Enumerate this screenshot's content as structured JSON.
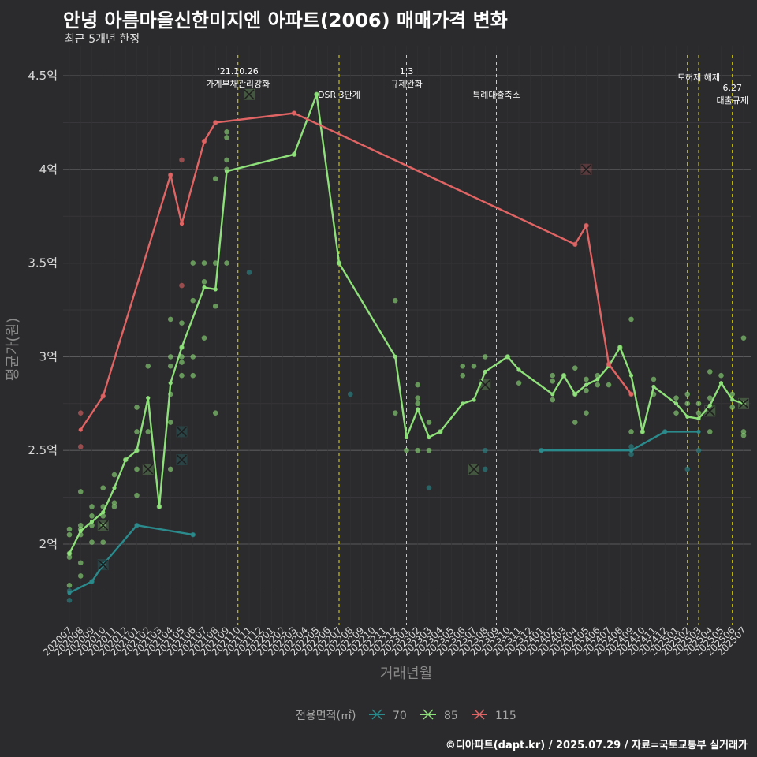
{
  "title": "안녕 아름마을신한미지엔 아파트(2006) 매매가격 변화",
  "subtitle": "최근 5개년 한정",
  "caption": "©디아파트(dapt.kr) / 2025.07.29 / 자료=국토교통부 실거래가",
  "chart_data": {
    "type": "line",
    "xlabel": "거래년월",
    "ylabel": "평균가(원)",
    "ylim": [
      1.6,
      4.6
    ],
    "yticks": [
      2.0,
      2.5,
      3.0,
      3.5,
      4.0,
      4.5
    ],
    "ytick_labels": [
      "2억",
      "2.5억",
      "3억",
      "3.5억",
      "4억",
      "4.5억"
    ],
    "x_categories": [
      "202007",
      "202008",
      "202009",
      "202010",
      "202011",
      "202012",
      "202101",
      "202102",
      "202103",
      "202104",
      "202105",
      "202106",
      "202107",
      "202108",
      "202109",
      "202110",
      "202111",
      "202112",
      "202201",
      "202202",
      "202203",
      "202204",
      "202205",
      "202206",
      "202207",
      "202208",
      "202209",
      "202210",
      "202211",
      "202212",
      "202301",
      "202302",
      "202303",
      "202304",
      "202305",
      "202306",
      "202307",
      "202308",
      "202309",
      "202310",
      "202311",
      "202312",
      "202401",
      "202402",
      "202403",
      "202404",
      "202405",
      "202406",
      "202407",
      "202408",
      "202409",
      "202410",
      "202411",
      "202412",
      "202501",
      "202502",
      "202503",
      "202504",
      "202505",
      "202506",
      "202507"
    ],
    "x_ticks": [
      "202007",
      "202008",
      "202009",
      "202010",
      "202011",
      "202012",
      "202101",
      "202102",
      "202103",
      "202104",
      "202105",
      "202106",
      "202107",
      "202108",
      "202109",
      "202110",
      "202111",
      "202112",
      "202201",
      "202202",
      "202203",
      "202204",
      "202205",
      "202206",
      "202207",
      "202208",
      "202209",
      "202210",
      "202211",
      "202212",
      "202301",
      "202302",
      "202303",
      "202304",
      "202305",
      "202306",
      "202307",
      "202308",
      "202309",
      "202310",
      "202311",
      "202312",
      "202401",
      "202402",
      "202403",
      "202404",
      "202405",
      "202406",
      "202407",
      "202408",
      "202409",
      "202410",
      "202411",
      "202412",
      "202501",
      "202502",
      "202503",
      "202504",
      "202505",
      "202506",
      "202507"
    ],
    "legend_title": "전용면적(㎡)",
    "legend_position": "bottom",
    "grid": true,
    "series": [
      {
        "name": "70",
        "color": "#2a8a8c",
        "line": [
          [
            "202007",
            1.74
          ],
          [
            "202009",
            1.8
          ],
          [
            "202010",
            1.89
          ],
          [
            "202101",
            2.1
          ],
          [
            "202106",
            2.05
          ]
        ],
        "line2": [
          [
            "202401",
            2.5
          ],
          [
            "202409",
            2.5
          ],
          [
            "202412",
            2.6
          ],
          [
            "202503",
            2.6
          ]
        ],
        "points": [
          [
            "202007",
            1.7
          ],
          [
            "202007",
            1.75
          ],
          [
            "202009",
            1.8
          ],
          [
            "202010",
            1.89
          ],
          [
            "202101",
            2.1
          ],
          [
            "202106",
            2.05
          ],
          [
            "202111",
            3.45
          ],
          [
            "202208",
            2.8
          ],
          [
            "202303",
            2.3
          ],
          [
            "202308",
            2.4
          ],
          [
            "202308",
            2.5
          ],
          [
            "202401",
            2.5
          ],
          [
            "202409",
            2.48
          ],
          [
            "202409",
            2.52
          ],
          [
            "202412",
            2.6
          ],
          [
            "202502",
            2.4
          ],
          [
            "202503",
            2.5
          ]
        ],
        "cross": [
          [
            "202010",
            1.89
          ],
          [
            "202105",
            2.6
          ],
          [
            "202105",
            2.45
          ]
        ]
      },
      {
        "name": "85",
        "color": "#8ee07a",
        "line": [
          [
            "202007",
            1.95
          ],
          [
            "202008",
            2.07
          ],
          [
            "202009",
            2.12
          ],
          [
            "202010",
            2.17
          ],
          [
            "202011",
            2.3
          ],
          [
            "202012",
            2.45
          ],
          [
            "202101",
            2.5
          ],
          [
            "202102",
            2.78
          ],
          [
            "202103",
            2.2
          ],
          [
            "202104",
            2.86
          ],
          [
            "202105",
            3.05
          ],
          [
            "202107",
            3.37
          ],
          [
            "202108",
            3.36
          ],
          [
            "202109",
            3.99
          ],
          [
            "202203",
            4.08
          ],
          [
            "202205",
            4.4
          ],
          [
            "202207",
            3.5
          ],
          [
            "202212",
            3.0
          ],
          [
            "202301",
            2.57
          ],
          [
            "202302",
            2.72
          ],
          [
            "202303",
            2.57
          ],
          [
            "202304",
            2.6
          ],
          [
            "202306",
            2.75
          ],
          [
            "202307",
            2.77
          ],
          [
            "202308",
            2.92
          ],
          [
            "202310",
            3.0
          ],
          [
            "202311",
            2.93
          ],
          [
            "202402",
            2.8
          ],
          [
            "202403",
            2.9
          ],
          [
            "202404",
            2.8
          ],
          [
            "202405",
            2.85
          ],
          [
            "202406",
            2.88
          ],
          [
            "202407",
            2.95
          ],
          [
            "202408",
            3.05
          ],
          [
            "202409",
            2.9
          ],
          [
            "202410",
            2.6
          ],
          [
            "202411",
            2.84
          ],
          [
            "202501",
            2.75
          ],
          [
            "202502",
            2.68
          ],
          [
            "202503",
            2.67
          ],
          [
            "202504",
            2.74
          ],
          [
            "202505",
            2.86
          ],
          [
            "202506",
            2.77
          ],
          [
            "202507",
            2.75
          ]
        ],
        "points": [
          [
            "202007",
            1.78
          ],
          [
            "202007",
            1.93
          ],
          [
            "202007",
            1.95
          ],
          [
            "202007",
            2.05
          ],
          [
            "202007",
            2.08
          ],
          [
            "202008",
            1.83
          ],
          [
            "202008",
            1.9
          ],
          [
            "202008",
            2.05
          ],
          [
            "202008",
            2.08
          ],
          [
            "202008",
            2.1
          ],
          [
            "202008",
            2.28
          ],
          [
            "202009",
            2.01
          ],
          [
            "202009",
            2.1
          ],
          [
            "202009",
            2.15
          ],
          [
            "202009",
            2.2
          ],
          [
            "202010",
            2.01
          ],
          [
            "202010",
            2.1
          ],
          [
            "202010",
            2.15
          ],
          [
            "202010",
            2.2
          ],
          [
            "202010",
            2.3
          ],
          [
            "202011",
            2.2
          ],
          [
            "202011",
            2.22
          ],
          [
            "202011",
            2.37
          ],
          [
            "202012",
            2.45
          ],
          [
            "202101",
            2.26
          ],
          [
            "202101",
            2.4
          ],
          [
            "202101",
            2.5
          ],
          [
            "202101",
            2.6
          ],
          [
            "202101",
            2.73
          ],
          [
            "202102",
            2.6
          ],
          [
            "202102",
            2.95
          ],
          [
            "202103",
            2.2
          ],
          [
            "202104",
            2.4
          ],
          [
            "202104",
            2.65
          ],
          [
            "202104",
            2.8
          ],
          [
            "202104",
            2.95
          ],
          [
            "202104",
            3.0
          ],
          [
            "202104",
            3.2
          ],
          [
            "202105",
            2.9
          ],
          [
            "202105",
            2.97
          ],
          [
            "202105",
            3.0
          ],
          [
            "202105",
            3.05
          ],
          [
            "202105",
            3.18
          ],
          [
            "202106",
            2.9
          ],
          [
            "202106",
            3.0
          ],
          [
            "202106",
            3.3
          ],
          [
            "202106",
            3.5
          ],
          [
            "202107",
            3.1
          ],
          [
            "202107",
            3.4
          ],
          [
            "202107",
            3.5
          ],
          [
            "202108",
            2.7
          ],
          [
            "202108",
            3.27
          ],
          [
            "202108",
            3.5
          ],
          [
            "202108",
            3.95
          ],
          [
            "202109",
            3.5
          ],
          [
            "202109",
            4.0
          ],
          [
            "202109",
            4.05
          ],
          [
            "202109",
            4.17
          ],
          [
            "202109",
            4.2
          ],
          [
            "202203",
            4.08
          ],
          [
            "202205",
            4.4
          ],
          [
            "202207",
            3.5
          ],
          [
            "202212",
            2.7
          ],
          [
            "202212",
            3.3
          ],
          [
            "202301",
            2.5
          ],
          [
            "202302",
            2.5
          ],
          [
            "202302",
            2.75
          ],
          [
            "202302",
            2.78
          ],
          [
            "202302",
            2.85
          ],
          [
            "202303",
            2.5
          ],
          [
            "202303",
            2.65
          ],
          [
            "202304",
            2.6
          ],
          [
            "202306",
            2.9
          ],
          [
            "202306",
            2.95
          ],
          [
            "202307",
            2.95
          ],
          [
            "202308",
            3.0
          ],
          [
            "202310",
            3.0
          ],
          [
            "202311",
            2.86
          ],
          [
            "202402",
            2.77
          ],
          [
            "202402",
            2.87
          ],
          [
            "202402",
            2.9
          ],
          [
            "202403",
            2.9
          ],
          [
            "202404",
            2.65
          ],
          [
            "202404",
            2.8
          ],
          [
            "202404",
            2.94
          ],
          [
            "202405",
            2.7
          ],
          [
            "202405",
            2.82
          ],
          [
            "202405",
            2.88
          ],
          [
            "202406",
            2.85
          ],
          [
            "202406",
            2.9
          ],
          [
            "202407",
            2.85
          ],
          [
            "202408",
            3.05
          ],
          [
            "202409",
            2.6
          ],
          [
            "202409",
            3.2
          ],
          [
            "202410",
            2.6
          ],
          [
            "202411",
            2.8
          ],
          [
            "202411",
            2.88
          ],
          [
            "202501",
            2.7
          ],
          [
            "202501",
            2.78
          ],
          [
            "202502",
            2.75
          ],
          [
            "202502",
            2.8
          ],
          [
            "202503",
            2.7
          ],
          [
            "202503",
            2.75
          ],
          [
            "202504",
            2.6
          ],
          [
            "202504",
            2.78
          ],
          [
            "202504",
            2.92
          ],
          [
            "202505",
            2.9
          ],
          [
            "202506",
            2.73
          ],
          [
            "202506",
            2.8
          ],
          [
            "202507",
            2.58
          ],
          [
            "202507",
            2.6
          ],
          [
            "202507",
            3.1
          ]
        ],
        "cross": [
          [
            "202010",
            2.1
          ],
          [
            "202102",
            2.4
          ],
          [
            "202111",
            4.4
          ],
          [
            "202307",
            2.4
          ],
          [
            "202308",
            2.85
          ],
          [
            "202504",
            2.71
          ],
          [
            "202507",
            2.75
          ]
        ]
      },
      {
        "name": "115",
        "color": "#e06464",
        "line": [
          [
            "202008",
            2.61
          ],
          [
            "202010",
            2.79
          ],
          [
            "202104",
            3.97
          ],
          [
            "202105",
            3.71
          ],
          [
            "202107",
            4.15
          ],
          [
            "202108",
            4.25
          ],
          [
            "202203",
            4.3
          ],
          [
            "202404",
            3.6
          ],
          [
            "202405",
            3.7
          ],
          [
            "202407",
            2.96
          ],
          [
            "202409",
            2.8
          ]
        ],
        "points": [
          [
            "202008",
            2.7
          ],
          [
            "202008",
            2.52
          ],
          [
            "202010",
            2.79
          ],
          [
            "202104",
            3.97
          ],
          [
            "202105",
            3.38
          ],
          [
            "202105",
            4.05
          ],
          [
            "202107",
            4.15
          ],
          [
            "202108",
            4.25
          ],
          [
            "202203",
            4.3
          ],
          [
            "202404",
            3.6
          ],
          [
            "202405",
            3.7
          ],
          [
            "202407",
            2.96
          ],
          [
            "202409",
            2.8
          ]
        ],
        "cross": [
          [
            "202405",
            4.0
          ]
        ]
      }
    ],
    "events": [
      {
        "x": "202110",
        "label": [
          "'21.10.26",
          "가계부채관리강화"
        ],
        "pos": "high"
      },
      {
        "x": "202207",
        "label": [
          "DSR 3단계"
        ],
        "pos": "low"
      },
      {
        "x": "202301",
        "label": [
          "1.3",
          "규제완화"
        ],
        "pos": "high"
      },
      {
        "x": "202309",
        "label": [
          "특례대출축소"
        ],
        "pos": "low"
      },
      {
        "x": "202502",
        "label": [],
        "pos": "high"
      },
      {
        "x": "202503",
        "label": [
          "토허제 해제"
        ],
        "pos": "mid"
      },
      {
        "x": "202506",
        "label": [
          "6.27",
          "대출규제"
        ],
        "pos": "lowest"
      }
    ]
  }
}
